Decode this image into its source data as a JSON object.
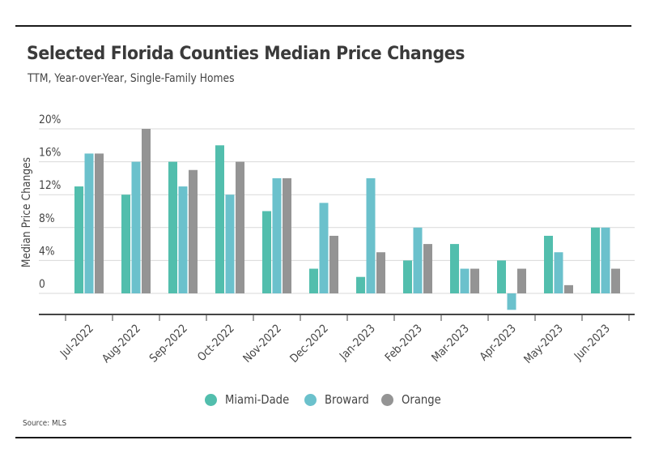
{
  "header": {
    "title": "Selected Florida Counties Median Price Changes",
    "subtitle": "TTM, Year-over-Year, Single-Family Homes"
  },
  "footer": {
    "source": "Source: MLS"
  },
  "colors": {
    "Miami-Dade": "#52bead",
    "Broward": "#6bc1cc",
    "Orange": "#949494",
    "grid": "#d9d9d9",
    "axis": "#444444"
  },
  "chart_data": {
    "type": "bar",
    "title": "Selected Florida Counties Median Price Changes",
    "subtitle": "TTM, Year-over-Year, Single-Family Homes",
    "xlabel": "",
    "ylabel": "Median Price Changes",
    "ylim": [
      0,
      20
    ],
    "yticks": [
      0,
      4,
      8,
      12,
      16,
      20
    ],
    "ytick_labels": [
      "0",
      "4%",
      "8%",
      "12%",
      "16%",
      "20%"
    ],
    "grid": true,
    "legend_position": "bottom",
    "categories": [
      "Jul-2022",
      "Aug-2022",
      "Sep-2022",
      "Oct-2022",
      "Nov-2022",
      "Dec-2022",
      "Jan-2023",
      "Feb-2023",
      "Mar-2023",
      "Apr-2023",
      "May-2023",
      "Jun-2023"
    ],
    "series": [
      {
        "name": "Miami-Dade",
        "values": [
          13,
          12,
          16,
          18,
          10,
          3,
          2,
          4,
          6,
          4,
          7,
          8
        ]
      },
      {
        "name": "Broward",
        "values": [
          17,
          16,
          13,
          12,
          14,
          11,
          14,
          8,
          3,
          -2,
          5,
          8
        ]
      },
      {
        "name": "Orange",
        "values": [
          17,
          20,
          15,
          16,
          14,
          7,
          5,
          6,
          3,
          3,
          1,
          3
        ]
      }
    ]
  }
}
